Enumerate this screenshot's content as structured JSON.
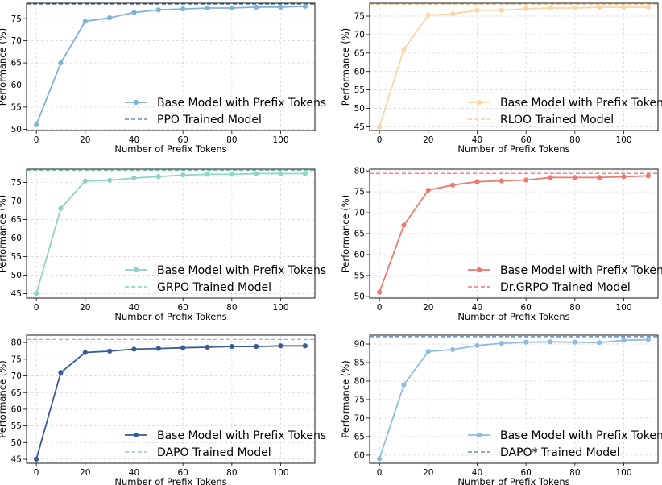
{
  "chart_data": [
    {
      "type": "line",
      "xlabel": "Number of Prefix Tokens",
      "ylabel": "Performance (%)",
      "xlim": [
        -4,
        114
      ],
      "ylim": [
        49.7,
        78.5
      ],
      "xticks": [
        0,
        20,
        40,
        60,
        80,
        100
      ],
      "yticks": [
        50,
        55,
        60,
        65,
        70,
        75
      ],
      "x": [
        0,
        10,
        20,
        30,
        40,
        50,
        60,
        70,
        80,
        90,
        100,
        110
      ],
      "series": [
        {
          "name": "Base Model with Prefix Tokens",
          "values": [
            51.0,
            65.0,
            74.4,
            75.2,
            76.4,
            77.0,
            77.2,
            77.4,
            77.4,
            77.6,
            77.6,
            77.8
          ],
          "color": "#7fb2d5"
        }
      ],
      "reference": {
        "name": "PPO Trained Model",
        "value": 78.3,
        "color": "#4a78a8"
      },
      "legend": "lower-right",
      "grid": true
    },
    {
      "type": "line",
      "xlabel": "Number of Prefix Tokens",
      "ylabel": "Performance (%)",
      "xlim": [
        -4,
        114
      ],
      "ylim": [
        44,
        78.5
      ],
      "xticks": [
        0,
        20,
        40,
        60,
        80,
        100
      ],
      "yticks": [
        45,
        50,
        55,
        60,
        65,
        70,
        75
      ],
      "x": [
        0,
        10,
        20,
        30,
        40,
        50,
        60,
        70,
        80,
        90,
        100,
        110
      ],
      "series": [
        {
          "name": "Base Model with Prefix Tokens",
          "values": [
            45.0,
            66.0,
            75.3,
            75.6,
            76.6,
            76.6,
            77.0,
            77.2,
            77.2,
            77.4,
            77.4,
            77.4
          ],
          "color": "#f9d5a7"
        }
      ],
      "reference": {
        "name": "RLOO Trained Model",
        "value": 78.2,
        "color": "#f4c28f"
      },
      "legend": "lower-right",
      "grid": true
    },
    {
      "type": "line",
      "xlabel": "Number of Prefix Tokens",
      "ylabel": "Performance (%)",
      "xlim": [
        -4,
        114
      ],
      "ylim": [
        43.8,
        78.6
      ],
      "xticks": [
        0,
        20,
        40,
        60,
        80,
        100
      ],
      "yticks": [
        45,
        50,
        55,
        60,
        65,
        70,
        75
      ],
      "x": [
        0,
        10,
        20,
        30,
        40,
        50,
        60,
        70,
        80,
        90,
        100,
        110
      ],
      "series": [
        {
          "name": "Base Model with Prefix Tokens",
          "values": [
            45.0,
            68.0,
            75.4,
            75.6,
            76.2,
            76.6,
            77.0,
            77.2,
            77.2,
            77.4,
            77.4,
            77.4
          ],
          "color": "#8ed3c4"
        }
      ],
      "reference": {
        "name": "GRPO Trained Model",
        "value": 78.3,
        "color": "#5fc9a9"
      },
      "legend": "lower-right",
      "grid": true
    },
    {
      "type": "line",
      "xlabel": "Number of Prefix Tokens",
      "ylabel": "Performance (%)",
      "xlim": [
        -4,
        114
      ],
      "ylim": [
        49.6,
        80.4
      ],
      "xticks": [
        0,
        20,
        40,
        60,
        80,
        100
      ],
      "yticks": [
        50,
        55,
        60,
        65,
        70,
        75,
        80
      ],
      "x": [
        0,
        10,
        20,
        30,
        40,
        50,
        60,
        70,
        80,
        90,
        100,
        110
      ],
      "series": [
        {
          "name": "Base Model with Prefix Tokens",
          "values": [
            51.0,
            67.0,
            75.4,
            76.6,
            77.4,
            77.6,
            77.8,
            78.4,
            78.4,
            78.4,
            78.6,
            78.8
          ],
          "color": "#ec7a6f"
        }
      ],
      "reference": {
        "name": "Dr.GRPO Trained Model",
        "value": 79.4,
        "color": "#e65d5d"
      },
      "legend": "lower-right",
      "grid": true
    },
    {
      "type": "line",
      "xlabel": "Number of Prefix Tokens",
      "ylabel": "Performance (%)",
      "xlim": [
        -4,
        114
      ],
      "ylim": [
        43.8,
        82.2
      ],
      "xticks": [
        0,
        20,
        40,
        60,
        80,
        100
      ],
      "yticks": [
        45,
        50,
        55,
        60,
        65,
        70,
        75,
        80
      ],
      "x": [
        0,
        10,
        20,
        30,
        40,
        50,
        60,
        70,
        80,
        90,
        100,
        110
      ],
      "series": [
        {
          "name": "Base Model with Prefix Tokens",
          "values": [
            45.0,
            71.0,
            77.0,
            77.4,
            78.0,
            78.2,
            78.4,
            78.6,
            78.8,
            78.8,
            79.0,
            79.0
          ],
          "color": "#3b5a9a"
        }
      ],
      "reference": {
        "name": "DAPO Trained Model",
        "value": 80.9,
        "color": "#8ab6dc"
      },
      "legend": "lower-right",
      "grid": true
    },
    {
      "type": "line",
      "xlabel": "Number of Prefix Tokens",
      "ylabel": "Performance (%)",
      "xlim": [
        -4,
        114
      ],
      "ylim": [
        57.8,
        92.4
      ],
      "xticks": [
        0,
        20,
        40,
        60,
        80,
        100
      ],
      "yticks": [
        60,
        65,
        70,
        75,
        80,
        85,
        90
      ],
      "x": [
        0,
        10,
        20,
        30,
        40,
        50,
        60,
        70,
        80,
        90,
        100,
        110
      ],
      "series": [
        {
          "name": "Base Model with Prefix Tokens",
          "values": [
            59.0,
            79.0,
            88.0,
            88.5,
            89.6,
            90.2,
            90.5,
            90.6,
            90.5,
            90.4,
            91.0,
            91.2
          ],
          "color": "#8ebce0"
        }
      ],
      "reference": {
        "name": "DAPO* Trained Model",
        "value": 92.0,
        "color": "#4a78a8"
      },
      "legend": "lower-right",
      "grid": true
    }
  ]
}
